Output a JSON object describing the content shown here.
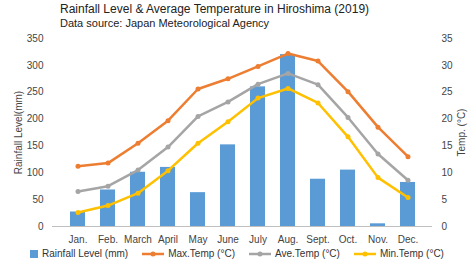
{
  "chart_data": {
    "type": "bar",
    "title": "Rainfall Level & Average Temperature in Hiroshima (2019)",
    "subtitle": "Data source:  Japan Meteorological Agency",
    "categories": [
      "Jan.",
      "Feb.",
      "March",
      "April",
      "May",
      "June",
      "July",
      "Aug.",
      "Sept.",
      "Oct.",
      "Nov.",
      "Dec."
    ],
    "ylabel": "Rainfall Level(mm)",
    "y2label": "Temp. (°C)",
    "ylim": [
      0,
      350
    ],
    "yticks": [
      0,
      50,
      100,
      150,
      200,
      250,
      300,
      350
    ],
    "y2lim": [
      0,
      35
    ],
    "y2ticks": [
      0,
      5,
      10,
      15,
      20,
      25,
      30,
      35
    ],
    "grid": false,
    "legend": "bottom",
    "series": [
      {
        "name": "Rainfall Level (mm)",
        "type": "bar",
        "color": "#5b9bd5",
        "values": [
          27,
          68,
          101,
          110,
          63,
          152,
          260,
          320,
          88,
          105,
          5,
          82
        ]
      },
      {
        "name": "Max.Temp (°C)",
        "type": "line",
        "axis": "y2",
        "marker": "circle",
        "color": "#ed7d31",
        "values": [
          11.2,
          11.8,
          15.5,
          19.7,
          25.6,
          27.5,
          29.8,
          32.2,
          30.8,
          25.1,
          18.5,
          13.0
        ]
      },
      {
        "name": "Ave.Temp (°C)",
        "type": "line",
        "axis": "y2",
        "marker": "circle",
        "color": "#a5a5a5",
        "values": [
          6.5,
          7.5,
          10.5,
          14.8,
          20.5,
          23.2,
          26.5,
          28.5,
          26.4,
          20.3,
          13.5,
          8.6
        ]
      },
      {
        "name": "Min.Temp (°C)",
        "type": "line",
        "axis": "y2",
        "marker": "circle",
        "color": "#ffc000",
        "values": [
          2.6,
          3.9,
          6.2,
          10.4,
          15.5,
          19.5,
          23.9,
          25.7,
          23.0,
          16.7,
          9.1,
          5.4
        ]
      }
    ]
  }
}
